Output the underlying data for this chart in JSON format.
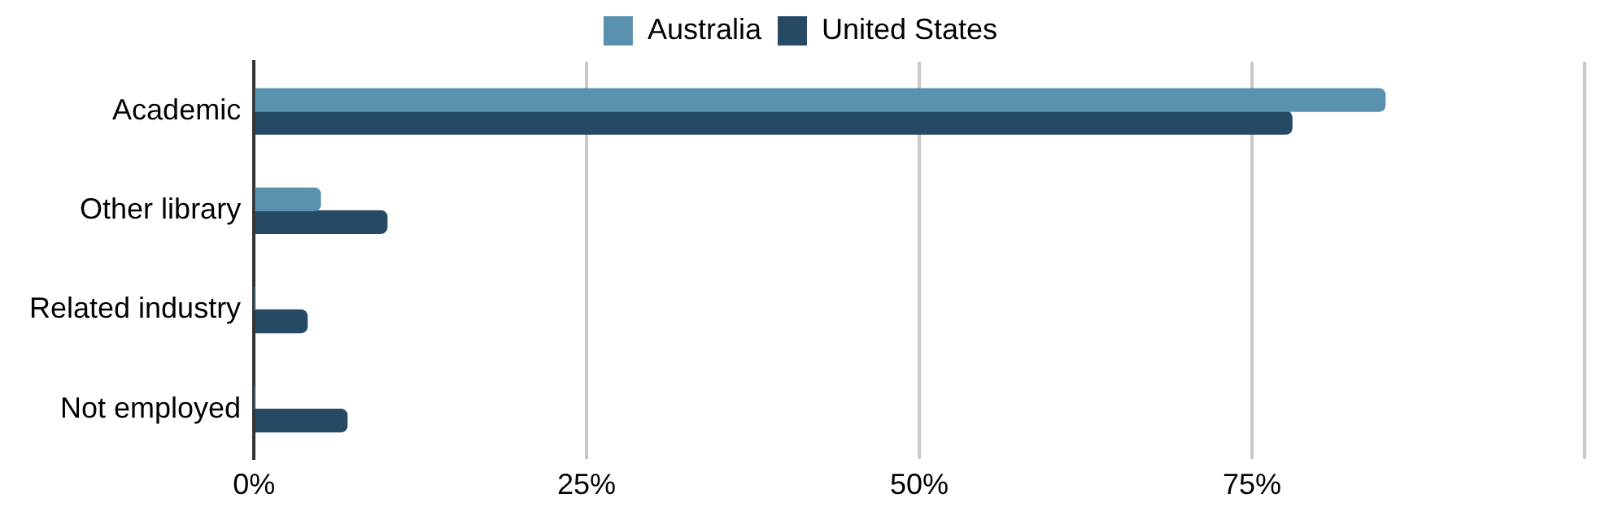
{
  "chart_data": {
    "type": "bar",
    "orientation": "horizontal",
    "categories": [
      "Academic",
      "Other library",
      "Related industry",
      "Not employed"
    ],
    "series": [
      {
        "name": "Australia",
        "color": "#5a91ae",
        "values": [
          85,
          5,
          0,
          0
        ]
      },
      {
        "name": "United States",
        "color": "#264a63",
        "values": [
          78,
          10,
          4,
          7
        ]
      }
    ],
    "xlim": [
      0,
      100
    ],
    "xticks": [
      {
        "value": 0,
        "label": "0%"
      },
      {
        "value": 25,
        "label": "25%"
      },
      {
        "value": 50,
        "label": "50%"
      },
      {
        "value": 75,
        "label": "75%"
      },
      {
        "value": 100,
        "label": null
      }
    ],
    "grid": "x",
    "legend": "top"
  }
}
